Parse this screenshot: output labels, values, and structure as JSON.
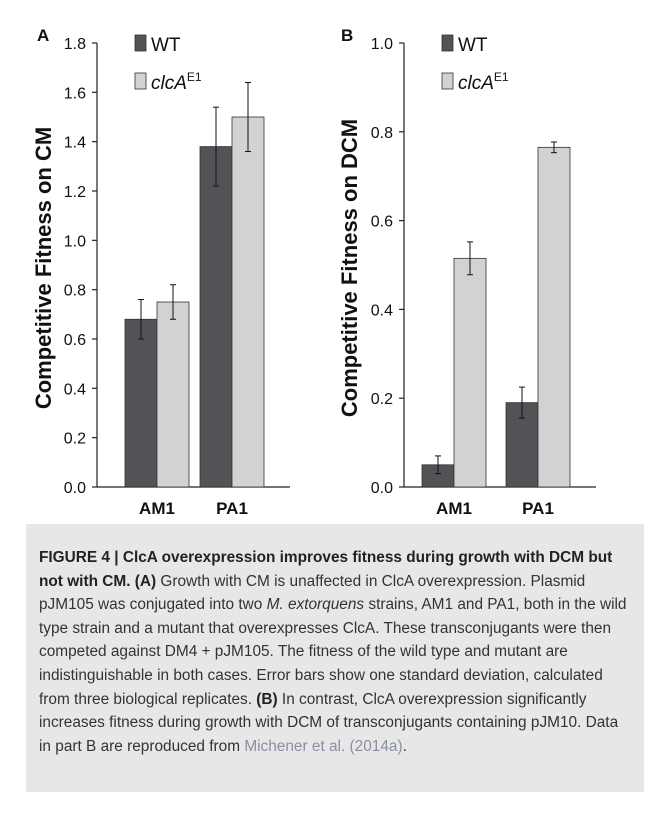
{
  "chart_data": [
    {
      "type": "bar",
      "panel_label": "A",
      "categories": [
        "AM1",
        "PA1"
      ],
      "series": [
        {
          "name": "WT",
          "values": [
            0.68,
            1.38
          ],
          "errors": [
            0.08,
            0.16
          ],
          "color": "#525257"
        },
        {
          "name": "clcA",
          "name_sup": "E1",
          "values": [
            0.75,
            1.5
          ],
          "errors": [
            0.07,
            0.14
          ],
          "color": "#d2d2d2"
        }
      ],
      "ylabel": "Competitive Fitness on CM",
      "ylim": [
        0.0,
        1.8
      ],
      "yticks": [
        "0.0",
        "0.2",
        "0.4",
        "0.6",
        "0.8",
        "1.0",
        "1.2",
        "1.4",
        "1.6",
        "1.8"
      ],
      "legend_position": "top-left",
      "grid": false
    },
    {
      "type": "bar",
      "panel_label": "B",
      "categories": [
        "AM1",
        "PA1"
      ],
      "series": [
        {
          "name": "WT",
          "values": [
            0.05,
            0.19
          ],
          "errors": [
            0.02,
            0.035
          ],
          "color": "#525257"
        },
        {
          "name": "clcA",
          "name_sup": "E1",
          "values": [
            0.515,
            0.765
          ],
          "errors": [
            0.037,
            0.012
          ],
          "color": "#d2d2d2"
        }
      ],
      "ylabel": "Competitive Fitness on DCM",
      "ylim": [
        0.0,
        1.0
      ],
      "yticks": [
        "0.0",
        "0.2",
        "0.4",
        "0.6",
        "0.8",
        "1.0"
      ],
      "legend_position": "top-left",
      "grid": false
    }
  ],
  "caption": {
    "label": "FIGURE 4 | ClcA overexpression improves fitness during growth with DCM but not with CM.",
    "part_a_marker": "(A)",
    "part_a_text_1": " Growth with CM is unaffected in ClcA overexpression. Plasmid pJM105 was conjugated into two ",
    "species": "M. extorquens",
    "part_a_text_2": " strains, AM1 and PA1, both in the wild type strain and a mutant that overexpresses ClcA. These transconjugants were then competed against DM4 + pJM105. The fitness of the wild type and mutant are indistinguishable in both cases. Error bars show one standard deviation, calculated from three biological replicates. ",
    "part_b_marker": "(B)",
    "part_b_text": " In contrast, ClcA overexpression significantly increases fitness during growth with DCM of transconjugants containing pJM10. Data in part B are reproduced from ",
    "reference": "Michener et al. (2014a)",
    "end": "."
  }
}
